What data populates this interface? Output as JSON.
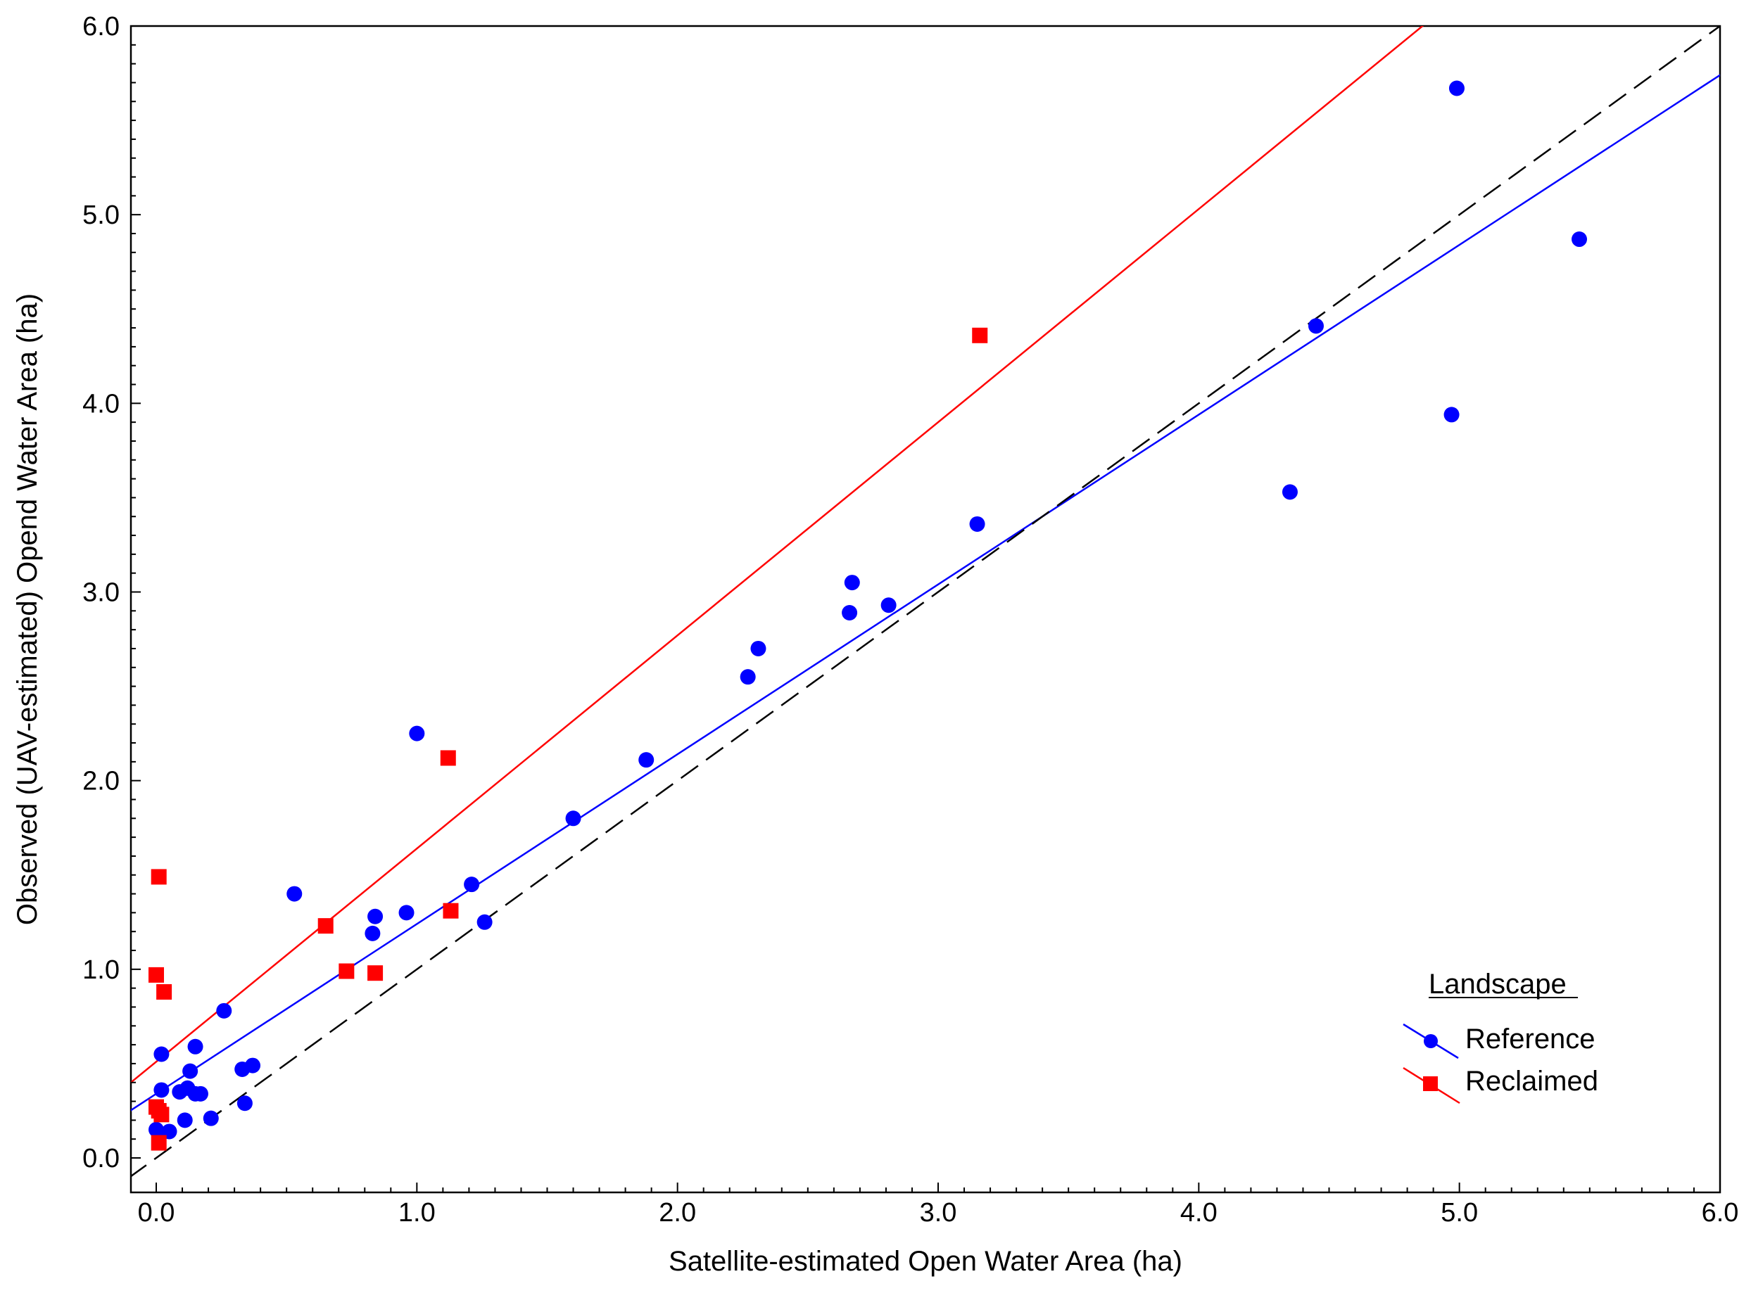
{
  "chart_data": {
    "type": "scatter",
    "xlabel": "Satellite-estimated Open Water Area (ha)",
    "ylabel": "Observed (UAV-estimated) Opend Water Area (ha)",
    "xlim": [
      -0.1,
      6.0
    ],
    "ylim": [
      -0.1,
      6.0
    ],
    "x_ticks": [
      "0.0",
      "1.0",
      "2.0",
      "3.0",
      "4.0",
      "5.0",
      "6.0"
    ],
    "y_ticks": [
      "0.0",
      "1.0",
      "2.0",
      "3.0",
      "4.0",
      "5.0",
      "6.0"
    ],
    "grid": false,
    "legend": {
      "title": "Landscape",
      "placement": "bottom-right",
      "entries": [
        "Reference",
        "Reclaimed"
      ]
    },
    "series": [
      {
        "name": "Reference",
        "marker": "circle",
        "color": "#0000ff",
        "x": [
          0.0,
          0.01,
          0.02,
          0.02,
          0.05,
          0.09,
          0.11,
          0.12,
          0.13,
          0.15,
          0.15,
          0.17,
          0.21,
          0.26,
          0.33,
          0.34,
          0.37,
          0.53,
          0.83,
          0.84,
          0.96,
          1.0,
          1.21,
          1.26,
          1.6,
          1.88,
          2.27,
          2.31,
          2.66,
          2.67,
          2.81,
          3.15,
          4.35,
          4.45,
          4.97,
          4.99,
          5.46
        ],
        "y": [
          0.15,
          0.13,
          0.55,
          0.36,
          0.14,
          0.35,
          0.2,
          0.37,
          0.46,
          0.34,
          0.59,
          0.34,
          0.21,
          0.78,
          0.47,
          0.29,
          0.49,
          1.4,
          1.19,
          1.28,
          1.3,
          2.25,
          1.45,
          1.25,
          1.8,
          2.11,
          2.55,
          2.7,
          2.89,
          3.05,
          2.93,
          3.36,
          3.53,
          4.41,
          3.94,
          5.67,
          4.87
        ]
      },
      {
        "name": "Reclaimed",
        "marker": "square",
        "color": "#ff0000",
        "x": [
          0.0,
          0.01,
          0.0,
          0.03,
          0.01,
          0.02,
          0.01,
          0.65,
          0.73,
          0.84,
          1.12,
          1.13,
          3.16
        ],
        "y": [
          0.97,
          1.49,
          0.27,
          0.88,
          0.25,
          0.23,
          0.08,
          1.23,
          0.99,
          0.98,
          2.12,
          1.31,
          4.36
        ]
      }
    ],
    "lines": [
      {
        "name": "Reference",
        "color": "#0000ff",
        "style": "solid",
        "intercept": 0.34,
        "slope": 0.9
      },
      {
        "name": "Reclaimed",
        "color": "#ff0000",
        "style": "solid",
        "intercept": 0.51,
        "slope": 1.13
      },
      {
        "name": "1:1",
        "color": "#000000",
        "style": "dashed",
        "intercept": 0.0,
        "slope": 1.0
      }
    ]
  }
}
